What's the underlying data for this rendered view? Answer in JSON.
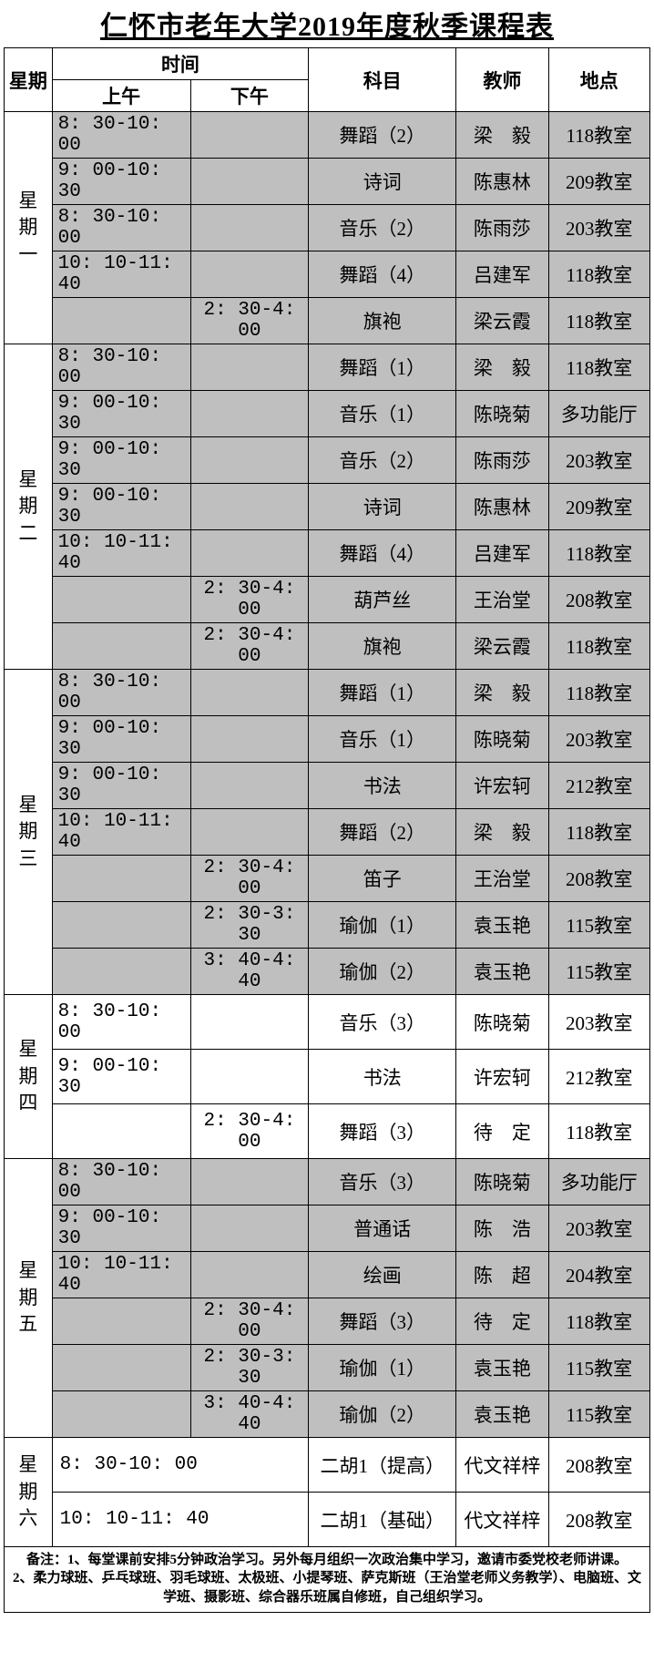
{
  "title": "仁怀市老年大学2019年度秋季课程表",
  "headers": {
    "day": "星期",
    "time": "时间",
    "am": "上午",
    "pm": "下午",
    "subject": "科目",
    "teacher": "教师",
    "location": "地点"
  },
  "colors": {
    "shaded": "#bfbfbf",
    "white": "#ffffff",
    "border": "#000000"
  },
  "days": [
    {
      "label": "星期一",
      "rows": [
        {
          "am": "8: 30-10: 00",
          "pm": "",
          "subject": "舞蹈（2）",
          "teacher": "梁　毅",
          "location": "118教室",
          "shade": true
        },
        {
          "am": "9: 00-10: 30",
          "pm": "",
          "subject": "诗词",
          "teacher": "陈惠林",
          "location": "209教室",
          "shade": true
        },
        {
          "am": "8: 30-10: 00",
          "pm": "",
          "subject": "音乐（2）",
          "teacher": "陈雨莎",
          "location": "203教室",
          "shade": true
        },
        {
          "am": "10: 10-11: 40",
          "pm": "",
          "subject": "舞蹈（4）",
          "teacher": "吕建军",
          "location": "118教室",
          "shade": true
        },
        {
          "am": "",
          "pm": "2: 30-4: 00",
          "subject": "旗袍",
          "teacher": "梁云霞",
          "location": "118教室",
          "shade": true
        }
      ]
    },
    {
      "label": "星期二",
      "rows": [
        {
          "am": "8: 30-10: 00",
          "pm": "",
          "subject": "舞蹈（1）",
          "teacher": "梁　毅",
          "location": "118教室",
          "shade": true
        },
        {
          "am": "9: 00-10: 30",
          "pm": "",
          "subject": "音乐（1）",
          "teacher": "陈晓菊",
          "location": "多功能厅",
          "shade": true
        },
        {
          "am": "9: 00-10: 30",
          "pm": "",
          "subject": "音乐（2）",
          "teacher": "陈雨莎",
          "location": "203教室",
          "shade": true
        },
        {
          "am": "9: 00-10: 30",
          "pm": "",
          "subject": "诗词",
          "teacher": "陈惠林",
          "location": "209教室",
          "shade": true
        },
        {
          "am": "10: 10-11: 40",
          "pm": "",
          "subject": "舞蹈（4）",
          "teacher": "吕建军",
          "location": "118教室",
          "shade": true
        },
        {
          "am": "",
          "pm": "2: 30-4: 00",
          "subject": "葫芦丝",
          "teacher": "王治堂",
          "location": "208教室",
          "shade": true
        },
        {
          "am": "",
          "pm": "2: 30-4: 00",
          "subject": "旗袍",
          "teacher": "梁云霞",
          "location": "118教室",
          "shade": true
        }
      ]
    },
    {
      "label": "星期三",
      "rows": [
        {
          "am": "8: 30-10: 00",
          "pm": "",
          "subject": "舞蹈（1）",
          "teacher": "梁　毅",
          "location": "118教室",
          "shade": true
        },
        {
          "am": "9: 00-10: 30",
          "pm": "",
          "subject": "音乐（1）",
          "teacher": "陈晓菊",
          "location": "203教室",
          "shade": true
        },
        {
          "am": "9: 00-10: 30",
          "pm": "",
          "subject": "书法",
          "teacher": "许宏轲",
          "location": "212教室",
          "shade": true
        },
        {
          "am": "10: 10-11: 40",
          "pm": "",
          "subject": "舞蹈（2）",
          "teacher": "梁　毅",
          "location": "118教室",
          "shade": true
        },
        {
          "am": "",
          "pm": "2: 30-4: 00",
          "subject": "笛子",
          "teacher": "王治堂",
          "location": "208教室",
          "shade": true
        },
        {
          "am": "",
          "pm": "2: 30-3: 30",
          "subject": "瑜伽（1）",
          "teacher": "袁玉艳",
          "location": "115教室",
          "shade": true
        },
        {
          "am": "",
          "pm": "3: 40-4: 40",
          "subject": "瑜伽（2）",
          "teacher": "袁玉艳",
          "location": "115教室",
          "shade": true
        }
      ]
    },
    {
      "label": "星期四",
      "rows": [
        {
          "am": "8: 30-10: 00",
          "pm": "",
          "subject": "音乐（3）",
          "teacher": "陈晓菊",
          "location": "203教室",
          "shade": false,
          "tall": true
        },
        {
          "am": "9: 00-10: 30",
          "pm": "",
          "subject": "书法",
          "teacher": "许宏轲",
          "location": "212教室",
          "shade": false,
          "tall": true
        },
        {
          "am": "",
          "pm": "2: 30-4: 00",
          "subject": "舞蹈（3）",
          "teacher": "待　定",
          "location": "118教室",
          "shade": false,
          "tall": true
        }
      ]
    },
    {
      "label": "星期五",
      "rows": [
        {
          "am": "8: 30-10: 00",
          "pm": "",
          "subject": "音乐（3）",
          "teacher": "陈晓菊",
          "location": "多功能厅",
          "shade": true
        },
        {
          "am": "9: 00-10: 30",
          "pm": "",
          "subject": "普通话",
          "teacher": "陈　浩",
          "location": "203教室",
          "shade": true
        },
        {
          "am": "10: 10-11: 40",
          "pm": "",
          "subject": "绘画",
          "teacher": "陈　超",
          "location": "204教室",
          "shade": true
        },
        {
          "am": "",
          "pm": "2: 30-4: 00",
          "subject": "舞蹈（3）",
          "teacher": "待　定",
          "location": "118教室",
          "shade": true
        },
        {
          "am": "",
          "pm": "2: 30-3: 30",
          "subject": "瑜伽（1）",
          "teacher": "袁玉艳",
          "location": "115教室",
          "shade": true
        },
        {
          "am": "",
          "pm": "3: 40-4: 40",
          "subject": "瑜伽（2）",
          "teacher": "袁玉艳",
          "location": "115教室",
          "shade": true
        }
      ]
    },
    {
      "label": "星期六",
      "rows": [
        {
          "am": "8: 30-10: 00",
          "pm": "",
          "subject": "二胡1（提高）",
          "teacher": "代文祥梓",
          "location": "208教室",
          "shade": false,
          "tall": true,
          "merge_time": true
        },
        {
          "am": "10: 10-11: 40",
          "pm": "",
          "subject": "二胡1（基础）",
          "teacher": "代文祥梓",
          "location": "208教室",
          "shade": false,
          "tall": true,
          "merge_time": true
        }
      ]
    }
  ],
  "notes": {
    "prefix": "备注：",
    "lines": [
      "1、每堂课前安排5分钟政治学习。另外每月组织一次政治集中学习，邀请市委党校老师讲课。",
      "2、柔力球班、乒乓球班、羽毛球班、太极班、小提琴班、萨克斯班（王治堂老师义务教学）、电脑班、文学班、摄影班、综合器乐班属自修班，自己组织学习。"
    ]
  }
}
